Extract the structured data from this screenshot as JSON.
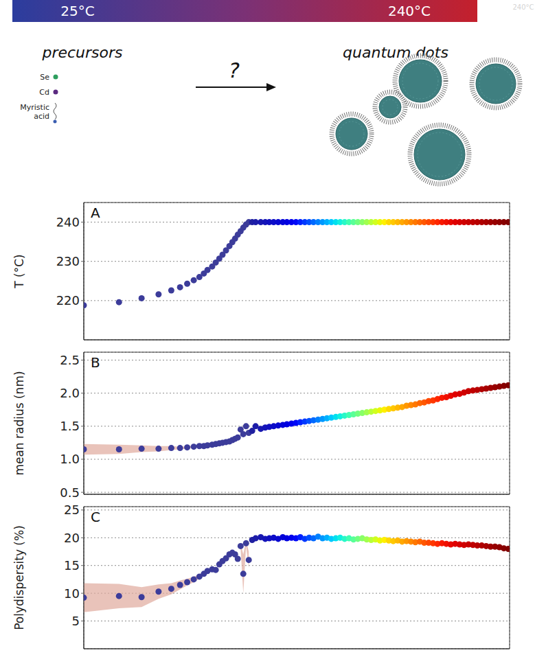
{
  "diagram": {
    "gradient_labels": [
      "25°C",
      "240°C"
    ],
    "corner_note": "240°C",
    "left_title": "precursors",
    "precursor_items": [
      "Se",
      "Cd",
      "Myristic acid"
    ],
    "arrow_label": "?",
    "right_title": "quantum dots"
  },
  "chart_data": [
    {
      "type": "scatter",
      "title": "A",
      "y_label": "T (°C)",
      "log": "x",
      "grid": true,
      "tick_labels": "y",
      "xlim": [
        0.4,
        26000
      ],
      "xticks": [
        10,
        100,
        1000,
        10000
      ],
      "ylim": [
        210,
        245
      ],
      "yticks": [
        220,
        230,
        240
      ],
      "x": [
        0.4,
        1.0,
        1.8,
        2.8,
        3.9,
        4.9,
        5.9,
        7.0,
        8.1,
        9.1,
        10,
        11.3,
        12.4,
        13.6,
        14.8,
        16.2,
        17.7,
        19.1,
        20.5,
        22,
        23.7,
        25.4,
        27.3,
        29.3,
        32,
        35,
        40,
        45,
        50,
        56,
        63,
        71,
        79,
        89,
        100,
        112,
        126,
        141,
        158,
        178,
        200,
        224,
        251,
        282,
        316,
        355,
        398,
        447,
        501,
        562,
        631,
        708,
        794,
        891,
        1000,
        1122,
        1259,
        1413,
        1585,
        1778,
        1995,
        2239,
        2512,
        2818,
        3162,
        3548,
        3981,
        4467,
        5012,
        5623,
        6310,
        7079,
        7943,
        8913,
        10000,
        11220,
        12589,
        14125,
        15849,
        17783,
        19953,
        22387,
        25119
      ],
      "values": [
        218.8,
        219.6,
        220.6,
        221.6,
        222.6,
        223.4,
        224.3,
        225.2,
        226.0,
        226.9,
        227.8,
        228.7,
        229.7,
        230.7,
        231.7,
        232.8,
        233.9,
        234.9,
        235.8,
        236.8,
        237.7,
        238.6,
        239.4,
        240,
        240,
        240,
        240,
        240,
        240,
        240,
        240,
        240,
        240,
        240,
        240,
        240,
        240,
        240,
        240,
        240,
        240,
        240,
        240,
        240,
        240,
        240,
        240,
        240,
        240,
        240,
        240,
        240,
        240,
        240,
        240,
        240,
        240,
        240,
        240,
        240,
        240,
        240,
        240,
        240,
        240,
        240,
        240,
        240,
        240,
        240,
        240,
        240,
        240,
        240,
        240,
        240,
        240,
        240,
        240,
        240,
        240,
        240,
        240
      ],
      "colors": [
        "#3c3c9a",
        "#3c3c9a",
        "#3c3c9a",
        "#3c3c9a",
        "#3c3c9a",
        "#3c3c9a",
        "#3c3c9a",
        "#3c3c9a",
        "#3c3c9a",
        "#3c3c9a",
        "#3c3c9a",
        "#3c3c9a",
        "#3c3c9a",
        "#3c3c9a",
        "#3c3c9a",
        "#3c3c9a",
        "#3c3c9a",
        "#3c3c9a",
        "#3c3c9a",
        "#3c3c9a",
        "#3c3c9a",
        "#3c3c9a",
        "#3c3c9a",
        "#3c3c9a",
        "#2020a0",
        "#1c1ca8",
        "#1818b0",
        "#1414b8",
        "#1010c0",
        "#0c0cc8",
        "#0808d0",
        "#0404d8",
        "#0000e0",
        "#0000ec",
        "#0008f8",
        "#0020ff",
        "#0038ff",
        "#0050ff",
        "#0068ff",
        "#0080ff",
        "#0098ff",
        "#00b0ff",
        "#00c8ff",
        "#00e0f0",
        "#10f0e0",
        "#28f8c8",
        "#40ffb0",
        "#58ff98",
        "#70ff80",
        "#88ff68",
        "#a0ff50",
        "#b8ff38",
        "#d0ff20",
        "#e8f808",
        "#fff000",
        "#ffd800",
        "#ffc800",
        "#ffb800",
        "#ffa800",
        "#ff9800",
        "#ff8800",
        "#ff7800",
        "#ff6800",
        "#ff5800",
        "#ff4800",
        "#ff3800",
        "#ff2800",
        "#f81800",
        "#f01000",
        "#e80800",
        "#e00000",
        "#d80000",
        "#d00000",
        "#c80000",
        "#c00000",
        "#b80000",
        "#b00000",
        "#a80000",
        "#a00000",
        "#980000",
        "#900000",
        "#880000",
        "#800000"
      ]
    },
    {
      "type": "scatter",
      "title": "B",
      "y_label": "mean radius (nm)",
      "log": "x",
      "grid": true,
      "tick_labels": "y",
      "xlim": [
        0.4,
        26000
      ],
      "xticks": [
        10,
        100,
        1000,
        10000
      ],
      "ylim": [
        0.47,
        2.62
      ],
      "yticks": [
        0.5,
        {
          "value": 1,
          "label": "1.0"
        },
        1.5,
        {
          "value": 2,
          "label": "2.0"
        },
        2.5
      ],
      "x": [
        0.4,
        1.0,
        1.8,
        2.8,
        3.9,
        4.9,
        5.9,
        7.0,
        8.1,
        9.1,
        10,
        11.3,
        12.4,
        13.6,
        14.8,
        16.2,
        17.7,
        19.1,
        20.5,
        22,
        23.7,
        25.4,
        27.3,
        29.3,
        32,
        35,
        40,
        45,
        50,
        56,
        63,
        71,
        79,
        89,
        100,
        112,
        126,
        141,
        158,
        178,
        200,
        224,
        251,
        282,
        316,
        355,
        398,
        447,
        501,
        562,
        631,
        708,
        794,
        891,
        1000,
        1122,
        1259,
        1413,
        1585,
        1778,
        1995,
        2239,
        2512,
        2818,
        3162,
        3548,
        3981,
        4467,
        5012,
        5623,
        6310,
        7079,
        7943,
        8913,
        10000,
        11220,
        12589,
        14125,
        15849,
        17783,
        19953,
        22387,
        25119
      ],
      "values": [
        1.15,
        1.15,
        1.16,
        1.16,
        1.17,
        1.17,
        1.18,
        1.19,
        1.2,
        1.2,
        1.21,
        1.22,
        1.23,
        1.24,
        1.25,
        1.26,
        1.27,
        1.29,
        1.31,
        1.33,
        1.45,
        1.38,
        1.5,
        1.4,
        1.43,
        1.5,
        1.46,
        1.48,
        1.49,
        1.5,
        1.51,
        1.52,
        1.53,
        1.54,
        1.55,
        1.56,
        1.57,
        1.58,
        1.59,
        1.6,
        1.61,
        1.62,
        1.63,
        1.64,
        1.65,
        1.66,
        1.67,
        1.68,
        1.69,
        1.7,
        1.71,
        1.72,
        1.73,
        1.74,
        1.75,
        1.76,
        1.77,
        1.78,
        1.79,
        1.81,
        1.82,
        1.83,
        1.85,
        1.86,
        1.88,
        1.89,
        1.91,
        1.93,
        1.94,
        1.96,
        1.98,
        1.99,
        2.01,
        2.03,
        2.04,
        2.05,
        2.06,
        2.07,
        2.08,
        2.09,
        2.1,
        2.11,
        2.12
      ],
      "errors": [
        0.08,
        0.07,
        0.05,
        0.04,
        0.03,
        0.02,
        0.02,
        0.015,
        0.01,
        null,
        null,
        null,
        null,
        null,
        null,
        null,
        null,
        null,
        null,
        null,
        null,
        null,
        null,
        null,
        null,
        null,
        null,
        null,
        null,
        null,
        null,
        null,
        null,
        null,
        null,
        null,
        null,
        null,
        null,
        null,
        null,
        null,
        null,
        null,
        null,
        null,
        null,
        null,
        null,
        null,
        null,
        null,
        null,
        null,
        null,
        null,
        null,
        null,
        null,
        null,
        null,
        null,
        null,
        null,
        null,
        null,
        null,
        null,
        null,
        null,
        null,
        null,
        null,
        null,
        null,
        null,
        null,
        null,
        null,
        null,
        null,
        null,
        null
      ],
      "colors": [
        "#3c3c9a",
        "#3c3c9a",
        "#3c3c9a",
        "#3c3c9a",
        "#3c3c9a",
        "#3c3c9a",
        "#3c3c9a",
        "#3c3c9a",
        "#3c3c9a",
        "#3c3c9a",
        "#3c3c9a",
        "#3c3c9a",
        "#3c3c9a",
        "#3c3c9a",
        "#3c3c9a",
        "#3c3c9a",
        "#3c3c9a",
        "#3c3c9a",
        "#3c3c9a",
        "#3c3c9a",
        "#3c3c9a",
        "#3c3c9a",
        "#3c3c9a",
        "#3c3c9a",
        "#2020a0",
        "#1c1ca8",
        "#1818b0",
        "#1414b8",
        "#1010c0",
        "#0c0cc8",
        "#0808d0",
        "#0404d8",
        "#0000e0",
        "#0000ec",
        "#0008f8",
        "#0020ff",
        "#0038ff",
        "#0050ff",
        "#0068ff",
        "#0080ff",
        "#0098ff",
        "#00b0ff",
        "#00c8ff",
        "#00e0f0",
        "#10f0e0",
        "#28f8c8",
        "#40ffb0",
        "#58ff98",
        "#70ff80",
        "#88ff68",
        "#a0ff50",
        "#b8ff38",
        "#d0ff20",
        "#e8f808",
        "#fff000",
        "#ffd800",
        "#ffc800",
        "#ffb800",
        "#ffa800",
        "#ff9800",
        "#ff8800",
        "#ff7800",
        "#ff6800",
        "#ff5800",
        "#ff4800",
        "#ff3800",
        "#ff2800",
        "#f81800",
        "#f01000",
        "#e80800",
        "#e00000",
        "#d80000",
        "#d00000",
        "#c80000",
        "#c00000",
        "#b80000",
        "#b00000",
        "#a80000",
        "#a00000",
        "#980000",
        "#900000",
        "#880000",
        "#800000"
      ]
    },
    {
      "type": "scatter",
      "title": "C",
      "y_label": "Polydispersity (%)",
      "log": "x",
      "grid": true,
      "tick_labels": "y",
      "xlim": [
        0.4,
        26000
      ],
      "xticks": [
        10,
        100,
        1000,
        10000
      ],
      "ylim": [
        0,
        25.6
      ],
      "yticks": [
        5,
        10,
        15,
        20,
        25
      ],
      "x": [
        0.4,
        1.0,
        1.8,
        2.8,
        3.9,
        4.9,
        5.9,
        7.0,
        8.1,
        9.1,
        10,
        11.3,
        12.4,
        13.6,
        14.8,
        16.2,
        17.7,
        19.1,
        20.5,
        22,
        23.7,
        25.4,
        27.3,
        29.3,
        32,
        35,
        40,
        45,
        50,
        56,
        63,
        71,
        79,
        89,
        100,
        112,
        126,
        141,
        158,
        178,
        200,
        224,
        251,
        282,
        316,
        355,
        398,
        447,
        501,
        562,
        631,
        708,
        794,
        891,
        1000,
        1122,
        1259,
        1413,
        1585,
        1778,
        1995,
        2239,
        2512,
        2818,
        3162,
        3548,
        3981,
        4467,
        5012,
        5623,
        6310,
        7079,
        7943,
        8913,
        10000,
        11220,
        12589,
        14125,
        15849,
        17783,
        19953,
        22387,
        25119
      ],
      "values": [
        9.2,
        9.5,
        9.3,
        10.3,
        10.8,
        11.5,
        12.0,
        12.5,
        13.0,
        13.5,
        14.0,
        14.3,
        14.2,
        15.2,
        15.8,
        16.3,
        17.0,
        17.3,
        17.0,
        16.2,
        18.5,
        13.5,
        19.0,
        16.0,
        19.6,
        19.9,
        20.1,
        19.8,
        19.9,
        20.0,
        19.8,
        20.1,
        19.9,
        20.0,
        19.9,
        20.1,
        19.8,
        20.0,
        19.9,
        20.2,
        19.9,
        20.0,
        19.8,
        19.9,
        20.0,
        19.8,
        19.9,
        19.7,
        19.8,
        19.9,
        19.7,
        19.6,
        19.7,
        19.5,
        19.6,
        19.5,
        19.4,
        19.5,
        19.3,
        19.4,
        19.3,
        19.2,
        19.3,
        19.1,
        19.1,
        19.0,
        18.9,
        19.0,
        18.9,
        18.8,
        18.9,
        18.8,
        18.7,
        18.8,
        18.7,
        18.6,
        18.6,
        18.5,
        18.4,
        18.4,
        18.3,
        18.1,
        18.0
      ],
      "errors": [
        2.6,
        2.2,
        1.8,
        1.3,
        1.0,
        0.8,
        0.6,
        0.5,
        0.4,
        0.3,
        null,
        null,
        null,
        null,
        null,
        null,
        null,
        null,
        null,
        null,
        0.5,
        3.5,
        0.5,
        1.5,
        null,
        null,
        null,
        null,
        null,
        null,
        null,
        null,
        null,
        null,
        null,
        null,
        null,
        null,
        null,
        null,
        null,
        null,
        null,
        null,
        null,
        null,
        null,
        null,
        null,
        null,
        null,
        null,
        null,
        null,
        null,
        null,
        null,
        null,
        null,
        null,
        null,
        null,
        null,
        null,
        null,
        null,
        null,
        null,
        null,
        null,
        null,
        null,
        null,
        null,
        null,
        null,
        null,
        null,
        null,
        null,
        null,
        null,
        null
      ],
      "colors": [
        "#3c3c9a",
        "#3c3c9a",
        "#3c3c9a",
        "#3c3c9a",
        "#3c3c9a",
        "#3c3c9a",
        "#3c3c9a",
        "#3c3c9a",
        "#3c3c9a",
        "#3c3c9a",
        "#3c3c9a",
        "#3c3c9a",
        "#3c3c9a",
        "#3c3c9a",
        "#3c3c9a",
        "#3c3c9a",
        "#3c3c9a",
        "#3c3c9a",
        "#3c3c9a",
        "#3c3c9a",
        "#3c3c9a",
        "#3c3c9a",
        "#3c3c9a",
        "#3c3c9a",
        "#2020a0",
        "#1c1ca8",
        "#1818b0",
        "#1414b8",
        "#1010c0",
        "#0c0cc8",
        "#0808d0",
        "#0404d8",
        "#0000e0",
        "#0000ec",
        "#0008f8",
        "#0020ff",
        "#0038ff",
        "#0050ff",
        "#0068ff",
        "#0080ff",
        "#0098ff",
        "#00b0ff",
        "#00c8ff",
        "#00e0f0",
        "#10f0e0",
        "#28f8c8",
        "#40ffb0",
        "#58ff98",
        "#70ff80",
        "#88ff68",
        "#a0ff50",
        "#b8ff38",
        "#d0ff20",
        "#e8f808",
        "#fff000",
        "#ffd800",
        "#ffc800",
        "#ffb800",
        "#ffa800",
        "#ff9800",
        "#ff8800",
        "#ff7800",
        "#ff6800",
        "#ff5800",
        "#ff4800",
        "#ff3800",
        "#ff2800",
        "#f81800",
        "#f01000",
        "#e80800",
        "#e00000",
        "#d80000",
        "#d00000",
        "#c80000",
        "#c00000",
        "#b80000",
        "#b00000",
        "#a80000",
        "#a00000",
        "#980000",
        "#900000",
        "#880000",
        "#800000"
      ]
    }
  ]
}
